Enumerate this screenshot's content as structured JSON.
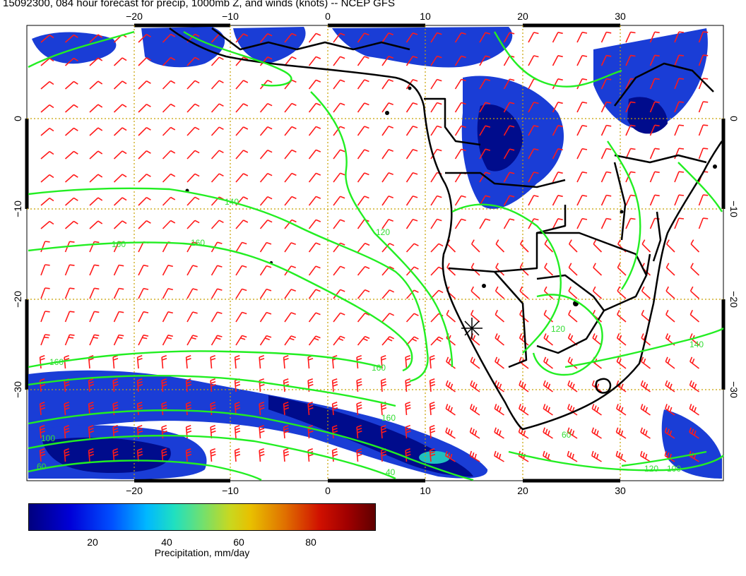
{
  "title": "15092300, 084 hour forecast for precip, 1000mb Z, and winds (knots) -- NCEP GFS",
  "axes": {
    "lon_ticks": [
      "−20",
      "−10",
      "0",
      "10",
      "20",
      "30"
    ],
    "lat_ticks": [
      "0",
      "−10",
      "−20",
      "−30"
    ]
  },
  "contour_labels": [
    "140",
    "160",
    "160",
    "160",
    "120",
    "140",
    "160",
    "160",
    "40",
    "120",
    "100",
    "60",
    "60",
    "100",
    "120"
  ],
  "colorbar": {
    "ticks": [
      "20",
      "40",
      "60",
      "80"
    ],
    "label": "Precipitation, mm/day"
  },
  "colors": {
    "precip_dark": "#000c8c",
    "precip_blue": "#1a3dd6",
    "wind_barbs": "#ff1a1a",
    "contours": "#22ee22",
    "coastline": "#000000",
    "grid": "#c8a000"
  }
}
